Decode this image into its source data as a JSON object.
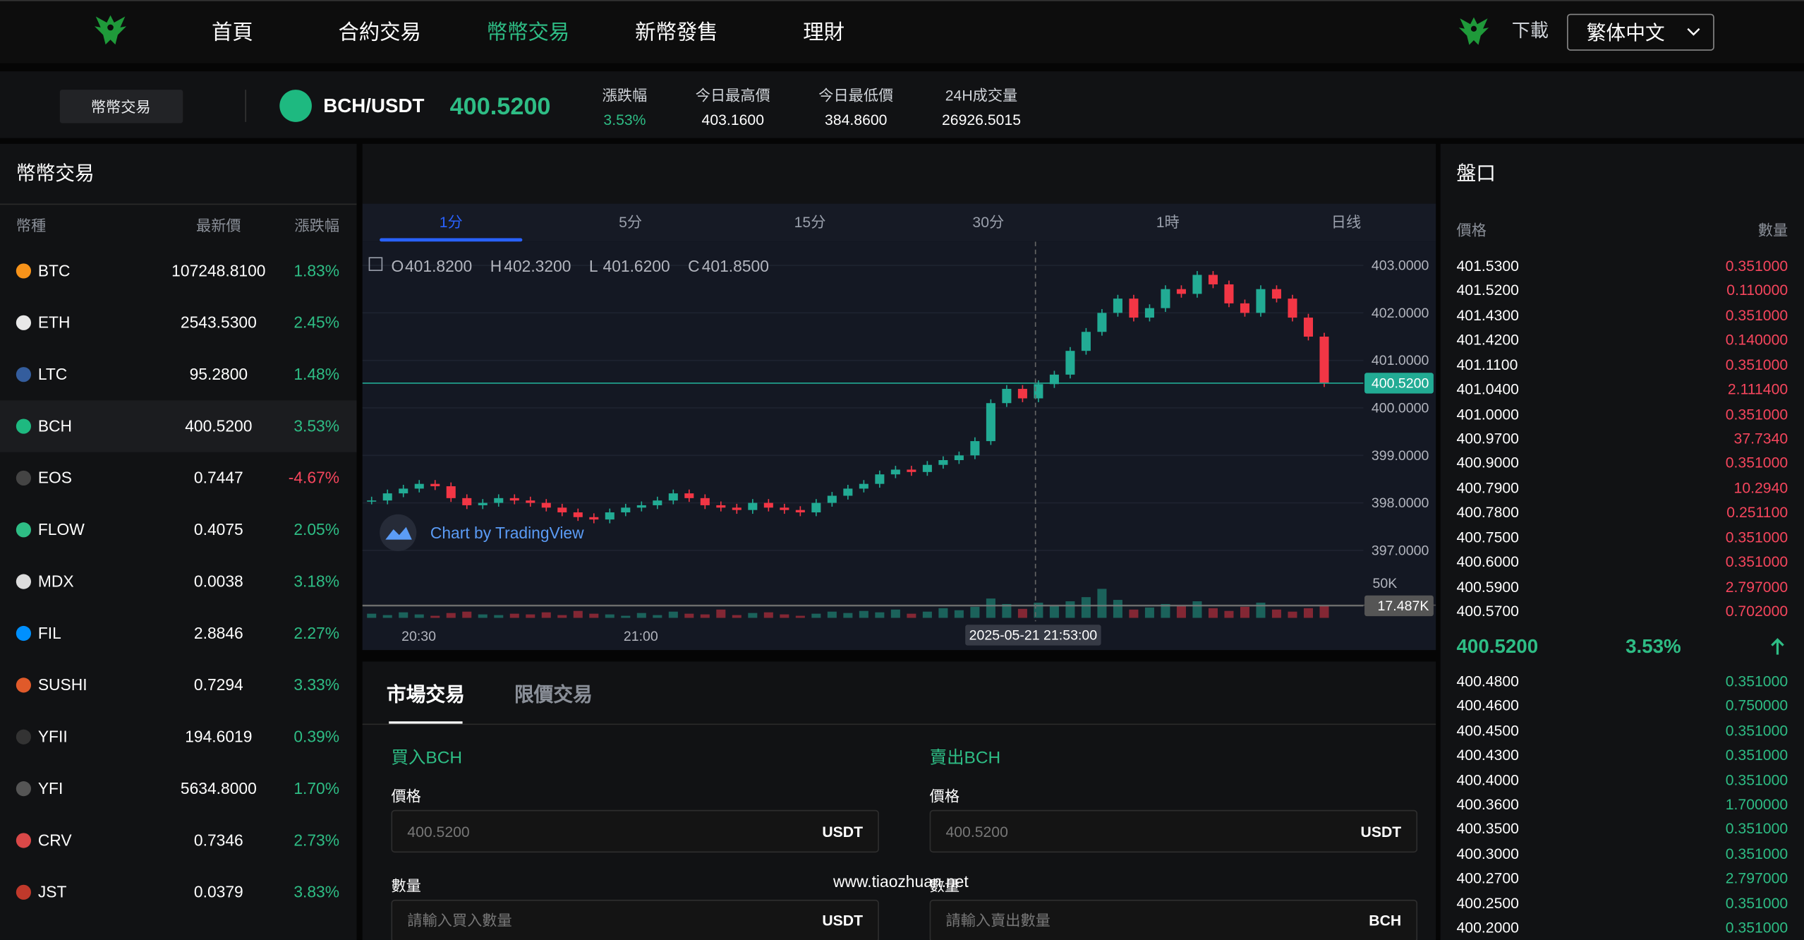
{
  "nav": {
    "items": [
      "首頁",
      "合約交易",
      "幣幣交易",
      "新幣發售",
      "理財"
    ],
    "active": 2,
    "download": "下載",
    "language": "繁体中文"
  },
  "ticker": {
    "tab": "幣幣交易",
    "pair": "BCH/USDT",
    "price": "400.5200",
    "stats": [
      {
        "label": "漲跌幅",
        "value": "3.53%"
      },
      {
        "label": "今日最高價",
        "value": "403.1600"
      },
      {
        "label": "今日最低價",
        "value": "384.8600"
      },
      {
        "label": "24H成交量",
        "value": "26926.5015"
      }
    ]
  },
  "market": {
    "title": "幣幣交易",
    "headers": [
      "幣種",
      "最新價",
      "漲跌幅"
    ],
    "selected": 3,
    "rows": [
      [
        "BTC",
        "107248.8100",
        "1.83%"
      ],
      [
        "ETH",
        "2543.5300",
        "2.45%"
      ],
      [
        "LTC",
        "95.2800",
        "1.48%"
      ],
      [
        "BCH",
        "400.5200",
        "3.53%"
      ],
      [
        "EOS",
        "0.7447",
        "-4.67%"
      ],
      [
        "FLOW",
        "0.4075",
        "2.05%"
      ],
      [
        "MDX",
        "0.0038",
        "3.18%"
      ],
      [
        "FIL",
        "2.8846",
        "2.27%"
      ],
      [
        "SUSHI",
        "0.7294",
        "3.33%"
      ],
      [
        "YFII",
        "194.6019",
        "0.39%"
      ],
      [
        "YFI",
        "5634.8000",
        "1.70%"
      ],
      [
        "CRV",
        "0.7346",
        "2.73%"
      ],
      [
        "JST",
        "0.0379",
        "3.83%"
      ]
    ]
  },
  "chart": {
    "type": "candlestick",
    "intervals": [
      "1分",
      "5分",
      "15分",
      "30分",
      "1時",
      "日线"
    ],
    "active_interval": 0,
    "ohlc": [
      {
        "label": "O",
        "value": "401.8200"
      },
      {
        "label": "H",
        "value": "402.3200"
      },
      {
        "label": "L",
        "value": "401.6200"
      },
      {
        "label": "C",
        "value": "401.8500"
      }
    ],
    "ylim": [
      396.5,
      403.5
    ],
    "yticks": [
      {
        "value": 403,
        "label": "403.0000"
      },
      {
        "value": 402,
        "label": "402.0000"
      },
      {
        "value": 401,
        "label": "401.0000"
      },
      {
        "value": 400,
        "label": "400.0000"
      },
      {
        "value": 399,
        "label": "399.0000"
      },
      {
        "value": 398,
        "label": "398.0000"
      },
      {
        "value": 397,
        "label": "397.0000"
      }
    ],
    "closes": [
      398.05,
      398.2,
      398.3,
      398.4,
      398.35,
      398.1,
      397.95,
      398.0,
      398.1,
      398.05,
      398.0,
      397.9,
      397.8,
      397.7,
      397.65,
      397.8,
      397.9,
      397.95,
      398.05,
      398.2,
      398.1,
      397.95,
      397.9,
      397.85,
      398.0,
      397.9,
      397.85,
      397.8,
      398.0,
      398.15,
      398.3,
      398.4,
      398.6,
      398.7,
      398.65,
      398.8,
      398.9,
      399.0,
      399.3,
      400.1,
      400.4,
      400.2,
      400.5,
      400.7,
      401.2,
      401.6,
      402.0,
      402.3,
      401.9,
      402.1,
      402.5,
      402.4,
      402.8,
      402.6,
      402.2,
      402.0,
      402.5,
      402.3,
      401.9,
      401.5,
      400.52
    ],
    "volumes": [
      6,
      4,
      8,
      5,
      3,
      7,
      9,
      5,
      4,
      6,
      5,
      8,
      4,
      10,
      6,
      5,
      3,
      7,
      4,
      9,
      6,
      5,
      12,
      4,
      7,
      8,
      5,
      3,
      6,
      9,
      7,
      10,
      8,
      12,
      6,
      9,
      14,
      11,
      16,
      28,
      20,
      13,
      22,
      18,
      24,
      30,
      42,
      26,
      12,
      15,
      20,
      18,
      24,
      14,
      10,
      16,
      22,
      12,
      9,
      14,
      17.487
    ],
    "volume_lim": [
      0,
      55
    ],
    "volume_ticks": [
      {
        "value": 50,
        "label": "50K"
      }
    ],
    "last_price": {
      "value": 400.52,
      "label": "400.5200"
    },
    "last_volume": {
      "value": 17.487,
      "label": "17.487K"
    },
    "x_labels": [
      "20:30",
      "21:00"
    ],
    "crosshair_time": "2025-05-21 21:53:00",
    "watermark": "Chart by TradingView"
  },
  "orderbook": {
    "title": "盤口",
    "headers": [
      "價格",
      "數量"
    ],
    "asks": [
      [
        "401.5300",
        "0.351000"
      ],
      [
        "401.5200",
        "0.110000"
      ],
      [
        "401.4300",
        "0.351000"
      ],
      [
        "401.4200",
        "0.140000"
      ],
      [
        "401.1100",
        "0.351000"
      ],
      [
        "401.0400",
        "2.111400"
      ],
      [
        "401.0000",
        "0.351000"
      ],
      [
        "400.9700",
        "37.7340"
      ],
      [
        "400.9000",
        "0.351000"
      ],
      [
        "400.7900",
        "10.2940"
      ],
      [
        "400.7800",
        "0.251100"
      ],
      [
        "400.7500",
        "0.351000"
      ],
      [
        "400.6000",
        "0.351000"
      ],
      [
        "400.5900",
        "2.797000"
      ],
      [
        "400.5700",
        "0.702000"
      ]
    ],
    "mid_price": "400.5200",
    "mid_change": "3.53%",
    "bids": [
      [
        "400.4800",
        "0.351000"
      ],
      [
        "400.4600",
        "0.750000"
      ],
      [
        "400.4500",
        "0.351000"
      ],
      [
        "400.4300",
        "0.351000"
      ],
      [
        "400.4000",
        "0.351000"
      ],
      [
        "400.3600",
        "1.700000"
      ],
      [
        "400.3500",
        "0.351000"
      ],
      [
        "400.3000",
        "0.351000"
      ],
      [
        "400.2700",
        "2.797000"
      ],
      [
        "400.2500",
        "0.351000"
      ],
      [
        "400.2000",
        "0.351000"
      ]
    ]
  },
  "order_form": {
    "tabs": [
      "市場交易",
      "限價交易"
    ],
    "active_tab": 0,
    "buy": {
      "title": "買入BCH",
      "price_label": "價格",
      "price": "400.5200",
      "price_unit": "USDT",
      "amount_label": "數量",
      "amount_placeholder": "請輸入買入數量",
      "amount_unit": "USDT"
    },
    "sell": {
      "title": "賣出BCH",
      "price_label": "價格",
      "price": "400.5200",
      "price_unit": "USDT",
      "amount_label": "數量",
      "amount_placeholder": "請輸入賣出數量",
      "amount_unit": "BCH"
    }
  },
  "watermark": "www.tiaozhuan.net"
}
